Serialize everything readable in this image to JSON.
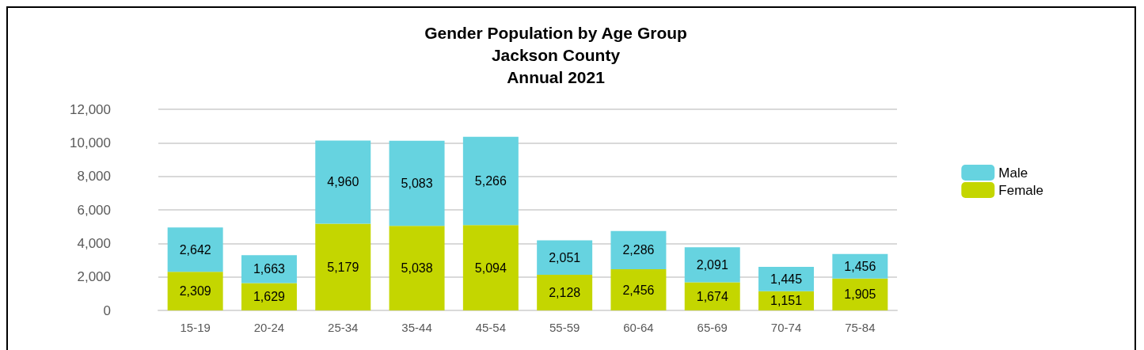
{
  "chart_data": {
    "type": "bar",
    "title": "Gender Population by Age Group\nJackson County\nAnnual 2021",
    "categories": [
      "15-19",
      "20-24",
      "25-34",
      "35-44",
      "45-54",
      "55-59",
      "60-64",
      "65-69",
      "70-74",
      "75-84"
    ],
    "stacked": true,
    "series": [
      {
        "name": "Female",
        "color": "#c4d600",
        "values": [
          2309,
          1629,
          5179,
          5038,
          5094,
          2128,
          2456,
          1674,
          1151,
          1905
        ],
        "value_labels": [
          "2,309",
          "1,629",
          "5,179",
          "5,038",
          "5,094",
          "2,128",
          "2,456",
          "1,674",
          "1,151",
          "1,905"
        ]
      },
      {
        "name": "Male",
        "color": "#66d3e0",
        "values": [
          2642,
          1663,
          4960,
          5083,
          5266,
          2051,
          2286,
          2091,
          1445,
          1456
        ],
        "value_labels": [
          "2,642",
          "1,663",
          "4,960",
          "5,083",
          "5,266",
          "2,051",
          "2,286",
          "2,091",
          "1,445",
          "1,456"
        ]
      }
    ],
    "ylim": [
      0,
      12000
    ],
    "yticks": [
      0,
      {
        "value": 2000,
        "label": "2,000"
      },
      {
        "value": 4000,
        "label": "4,000"
      },
      {
        "value": 6000,
        "label": "6,000"
      },
      {
        "value": 8000,
        "label": "8,000"
      },
      {
        "value": 10000,
        "label": "10,000"
      },
      {
        "value": 12000,
        "label": "12,000"
      }
    ],
    "grid": "y",
    "legend": "right"
  }
}
